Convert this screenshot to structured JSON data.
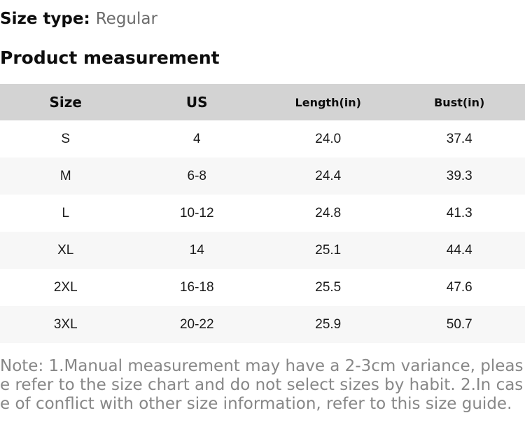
{
  "size_type": {
    "label": "Size type:",
    "value": "Regular"
  },
  "section_title": "Product measurement",
  "table": {
    "headers": [
      "Size",
      "US",
      "Length(in)",
      "Bust(in)"
    ],
    "rows": [
      [
        "S",
        "4",
        "24.0",
        "37.4"
      ],
      [
        "M",
        "6-8",
        "24.4",
        "39.3"
      ],
      [
        "L",
        "10-12",
        "24.8",
        "41.3"
      ],
      [
        "XL",
        "14",
        "25.1",
        "44.4"
      ],
      [
        "2XL",
        "16-18",
        "25.5",
        "47.6"
      ],
      [
        "3XL",
        "20-22",
        "25.9",
        "50.7"
      ]
    ]
  },
  "note": "Note: 1.Manual measurement may have a 2-3cm variance, please refer to the size chart and do not select sizes by habit. 2.In case of conflict with other size information, refer to this size guide.",
  "colors": {
    "header_bg": "#d3d3d3",
    "row_alt_bg": "#f7f7f7",
    "note_text": "#878787",
    "value_text": "#6b6b6b",
    "text_black": "#111111"
  }
}
